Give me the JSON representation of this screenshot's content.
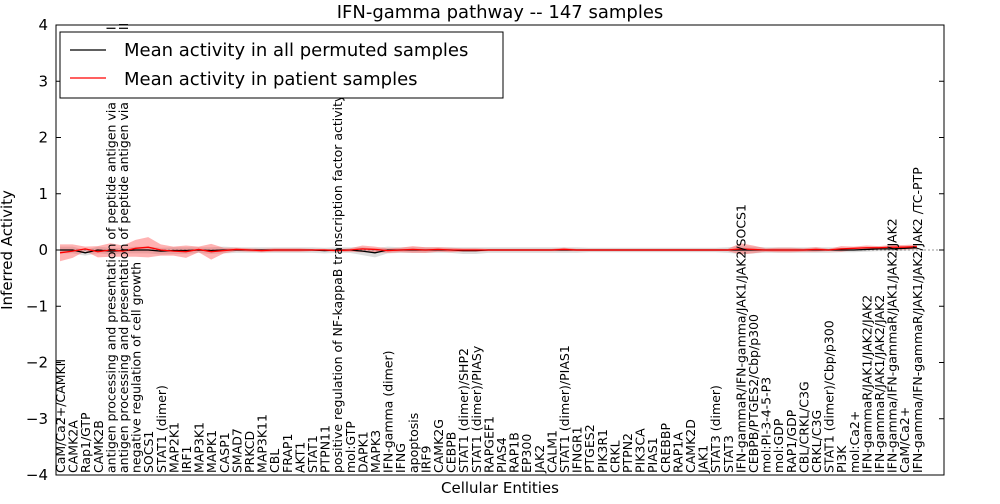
{
  "chart_data": {
    "type": "line",
    "title": "IFN-gamma pathway -- 147 samples",
    "xlabel": "Cellular Entities",
    "ylabel": "Inferred Activity",
    "ylim": [
      -4,
      4
    ],
    "yticks": [
      -4,
      -3,
      -2,
      -1,
      0,
      1,
      2,
      3,
      4
    ],
    "ytick_labels": [
      "−4",
      "−3",
      "−2",
      "−1",
      "0",
      "1",
      "2",
      "3",
      "4"
    ],
    "legend": {
      "placement": "top-left",
      "entries": [
        {
          "label": "Mean activity in all permuted samples",
          "color": "#000000"
        },
        {
          "label": "Mean activity in patient samples",
          "color": "#ff0000"
        }
      ]
    },
    "colors": {
      "permuted": "#000000",
      "patient": "#ff0000",
      "permuted_band": "#bbbbbb",
      "patient_band": "#ff5555"
    },
    "categories": [
      "CaM/Ca2+/CAMKII",
      "CAMK2A",
      "Rap1/GTP",
      "CAMK2B",
      "antigen processing and presentation of peptide antigen via MHC class I",
      "antigen processing and presentation of peptide antigen via MHC class II",
      "negative regulation of cell growth",
      "SOCS1",
      "STAT1 (dimer)",
      "MAP2K1",
      "IRF1",
      "MAP3K1",
      "MAPK1",
      "CASP1",
      "SMAD7",
      "PRKCD",
      "MAP3K11",
      "CBL",
      "FRAP1",
      "AKT1",
      "STAT1",
      "PTPN11",
      "positive regulation of NF-kappaB transcription factor activity",
      "mol:GTP",
      "DAPK1",
      "MAPK3",
      "IFN-gamma (dimer)",
      "IFNG",
      "apoptosis",
      "IRF9",
      "CAMK2G",
      "CEBPB",
      "STAT1 (dimer)/SHP2",
      "STAT1 (dimer)/PIASy",
      "RAPGEF1",
      "PIAS4",
      "RAP1B",
      "EP300",
      "JAK2",
      "CALM1",
      "STAT1 (dimer)/PIAS1",
      "IFNGR1",
      "PTGES2",
      "PIK3R1",
      "CRKL",
      "PTPN2",
      "PIK3CA",
      "PIAS1",
      "CREBBP",
      "RAP1A",
      "CAMK2D",
      "JAK1",
      "STAT3 (dimer)",
      "STAT3",
      "IFN-gammaR/IFN-gamma/JAK1/JAK2/SOCS1",
      "CEBPB/PTGES2/Cbp/p300",
      "mol:PI-3-4-5-P3",
      "mol:GDP",
      "RAP1/GDP",
      "CBL/CRKL/C3G",
      "CRKL/C3G",
      "STAT1 (dimer)/Cbp/p300",
      "PI3K",
      "mol:Ca2+",
      "IFN-gammaR/JAK1/JAK2/JAK2",
      "IFN-gammaR/JAK1/JAK2/JAK2",
      "IFN-gamma/IFN-gammaR/JAK1/JAK2/JAK2",
      "CaM/Ca2+",
      "IFN-gamma/IFN-gammaR/JAK1/JAK2/JAK2 /TC-PTP"
    ],
    "series": [
      {
        "name": "Mean activity in all permuted samples",
        "values": [
          0.0,
          0.0,
          -0.05,
          0.0,
          -0.02,
          -0.01,
          0.0,
          0.0,
          -0.02,
          -0.01,
          -0.01,
          0.0,
          -0.01,
          0.0,
          0.0,
          0.0,
          0.0,
          0.0,
          0.0,
          0.0,
          0.0,
          -0.01,
          0.0,
          0.0,
          -0.02,
          -0.05,
          0.0,
          0.0,
          0.0,
          0.0,
          0.0,
          0.0,
          -0.01,
          -0.01,
          0.0,
          0.0,
          0.0,
          0.0,
          0.0,
          0.0,
          0.0,
          0.0,
          0.0,
          0.0,
          0.0,
          0.0,
          0.0,
          0.0,
          0.0,
          0.0,
          0.0,
          0.0,
          0.0,
          0.0,
          0.0,
          0.0,
          0.0,
          0.0,
          0.0,
          0.0,
          0.0,
          0.0,
          0.0,
          0.0,
          0.01,
          0.02,
          0.02,
          0.03,
          0.04
        ]
      },
      {
        "name": "Mean activity in patient samples",
        "values": [
          -0.05,
          -0.02,
          0.02,
          -0.03,
          0.0,
          -0.02,
          0.03,
          0.05,
          0.0,
          -0.02,
          -0.03,
          0.01,
          -0.03,
          -0.01,
          0.01,
          0.0,
          -0.01,
          0.0,
          0.0,
          0.0,
          0.0,
          0.0,
          -0.01,
          0.0,
          0.02,
          0.01,
          -0.01,
          0.0,
          0.01,
          0.0,
          0.01,
          0.0,
          0.0,
          0.0,
          0.0,
          0.0,
          0.0,
          0.0,
          0.0,
          0.0,
          0.01,
          0.0,
          0.0,
          0.0,
          0.0,
          0.0,
          0.0,
          0.0,
          0.0,
          0.0,
          0.0,
          0.0,
          0.0,
          0.0,
          0.02,
          0.01,
          0.0,
          0.0,
          0.0,
          0.0,
          0.01,
          0.0,
          0.02,
          0.03,
          0.04,
          0.04,
          0.05,
          0.05,
          0.06
        ]
      }
    ],
    "bands": {
      "permuted_sd": [
        0.06,
        0.06,
        0.05,
        0.06,
        0.06,
        0.05,
        0.06,
        0.06,
        0.06,
        0.06,
        0.06,
        0.05,
        0.06,
        0.06,
        0.05,
        0.05,
        0.05,
        0.05,
        0.05,
        0.05,
        0.05,
        0.05,
        0.05,
        0.05,
        0.07,
        0.08,
        0.06,
        0.05,
        0.05,
        0.05,
        0.05,
        0.05,
        0.06,
        0.06,
        0.05,
        0.05,
        0.05,
        0.05,
        0.05,
        0.05,
        0.05,
        0.05,
        0.04,
        0.04,
        0.04,
        0.04,
        0.04,
        0.04,
        0.04,
        0.04,
        0.04,
        0.04,
        0.04,
        0.05,
        0.07,
        0.06,
        0.05,
        0.05,
        0.05,
        0.05,
        0.05,
        0.05,
        0.04,
        0.04,
        0.04,
        0.04,
        0.04,
        0.04,
        0.04
      ],
      "patient_sd": [
        0.15,
        0.12,
        0.04,
        0.1,
        0.12,
        0.1,
        0.15,
        0.18,
        0.1,
        0.08,
        0.11,
        0.05,
        0.14,
        0.05,
        0.03,
        0.03,
        0.03,
        0.03,
        0.03,
        0.03,
        0.02,
        0.02,
        0.02,
        0.03,
        0.06,
        0.05,
        0.04,
        0.04,
        0.06,
        0.05,
        0.04,
        0.04,
        0.03,
        0.03,
        0.02,
        0.02,
        0.02,
        0.02,
        0.02,
        0.02,
        0.03,
        0.02,
        0.02,
        0.02,
        0.02,
        0.02,
        0.02,
        0.02,
        0.02,
        0.02,
        0.02,
        0.02,
        0.02,
        0.02,
        0.1,
        0.07,
        0.03,
        0.04,
        0.04,
        0.03,
        0.04,
        0.02,
        0.05,
        0.03,
        0.04,
        0.03,
        0.04,
        0.04,
        0.04
      ]
    }
  }
}
